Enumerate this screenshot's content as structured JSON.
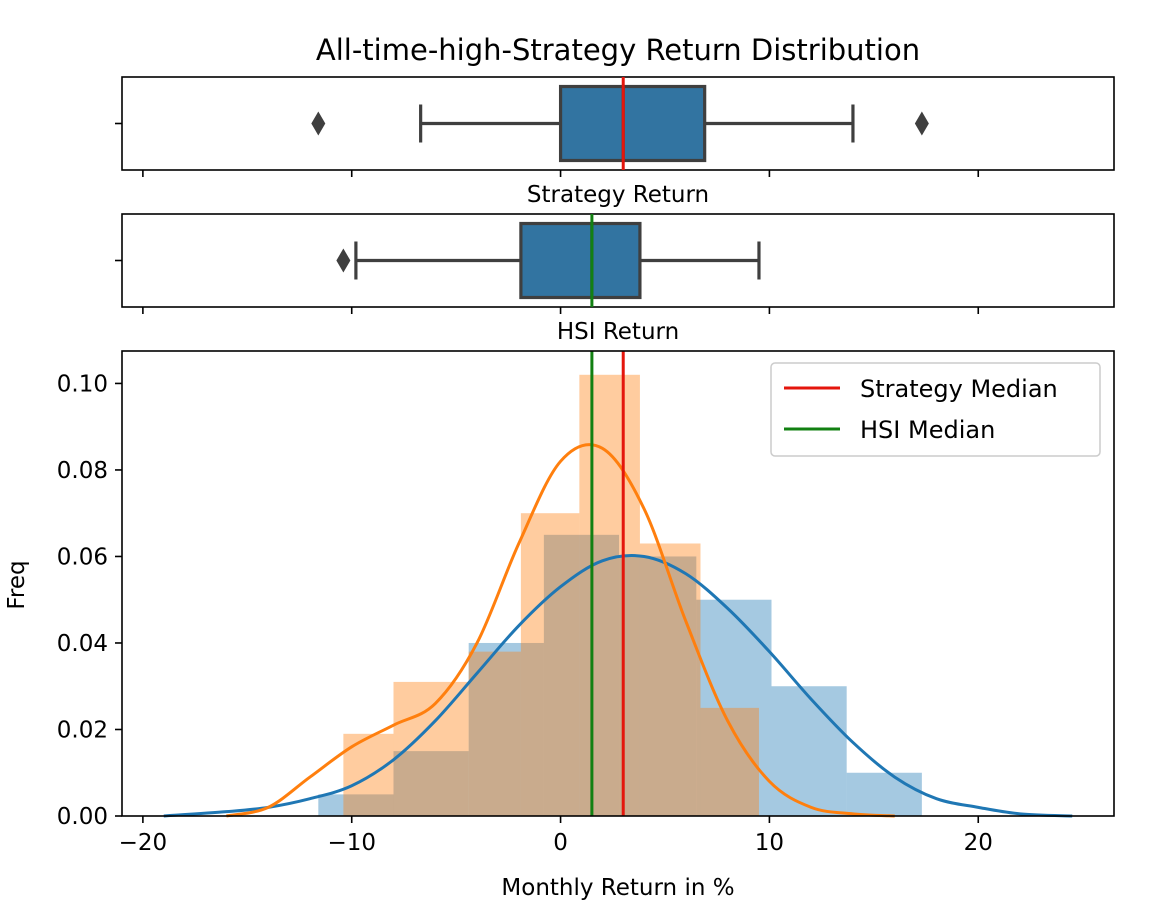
{
  "chart_data": {
    "type": "histogram",
    "title": "All-time-high-Strategy Return Distribution",
    "xlabel": "Monthly Return in %",
    "ylabel": "Freq",
    "xlim": [
      -21,
      26.5
    ],
    "ylim": [
      0,
      0.1075
    ],
    "xticks": [
      -20,
      -10,
      0,
      10,
      20
    ],
    "xtick_labels": [
      "−20",
      "−10",
      "0",
      "10",
      "20"
    ],
    "yticks": [
      0.0,
      0.02,
      0.04,
      0.06,
      0.08,
      0.1
    ],
    "ytick_labels": [
      "0.00",
      "0.02",
      "0.04",
      "0.06",
      "0.08",
      "0.10"
    ],
    "legend_position": "top-right",
    "colors": {
      "strategy": "#1f77b4",
      "hsi": "#ff7f0e",
      "strategy_median": "#e4160c",
      "hsi_median": "#128012",
      "box_fill": "#3274a1",
      "box_edge": "#3f3f3f"
    },
    "boxplots": [
      {
        "label": "Strategy Return",
        "median": 3.0,
        "q1": 0.0,
        "q3": 6.9,
        "whisker_low": -6.7,
        "whisker_high": 14.0,
        "outliers": [
          -11.6,
          17.3
        ],
        "median_color": "#e4160c"
      },
      {
        "label": "HSI Return",
        "median": 1.5,
        "q1": -1.9,
        "q3": 3.8,
        "whisker_low": -9.8,
        "whisker_high": 9.5,
        "outliers": [
          -10.4
        ],
        "median_color": "#128012"
      }
    ],
    "histograms": [
      {
        "name": "Strategy",
        "color": "#1f77b4",
        "opacity": 0.4,
        "bins": [
          {
            "x0": -11.6,
            "x1": -8.0,
            "y": 0.005
          },
          {
            "x0": -8.0,
            "x1": -4.4,
            "y": 0.015
          },
          {
            "x0": -4.4,
            "x1": -0.8,
            "y": 0.04
          },
          {
            "x0": -0.8,
            "x1": 2.8,
            "y": 0.065
          },
          {
            "x0": 2.8,
            "x1": 6.5,
            "y": 0.06
          },
          {
            "x0": 6.5,
            "x1": 10.1,
            "y": 0.05
          },
          {
            "x0": 10.1,
            "x1": 13.7,
            "y": 0.03
          },
          {
            "x0": 13.7,
            "x1": 17.3,
            "y": 0.01
          }
        ]
      },
      {
        "name": "HSI",
        "color": "#ff7f0e",
        "opacity": 0.4,
        "bins": [
          {
            "x0": -10.4,
            "x1": -8.0,
            "y": 0.019
          },
          {
            "x0": -8.0,
            "x1": -4.4,
            "y": 0.031
          },
          {
            "x0": -4.4,
            "x1": -1.9,
            "y": 0.038
          },
          {
            "x0": -1.9,
            "x1": 0.9,
            "y": 0.07
          },
          {
            "x0": 0.9,
            "x1": 3.8,
            "y": 0.102
          },
          {
            "x0": 3.8,
            "x1": 6.7,
            "y": 0.063
          },
          {
            "x0": 6.7,
            "x1": 9.5,
            "y": 0.025
          }
        ]
      }
    ],
    "kde": [
      {
        "name": "Strategy",
        "color": "#1f77b4",
        "x": [
          -19,
          -16,
          -14,
          -12,
          -10,
          -8,
          -6,
          -4,
          -2,
          0,
          2,
          4,
          6,
          8,
          10,
          12,
          14,
          16,
          18,
          20,
          22,
          24.5
        ],
        "y": [
          0.0,
          0.001,
          0.002,
          0.004,
          0.007,
          0.013,
          0.022,
          0.033,
          0.044,
          0.053,
          0.059,
          0.06,
          0.056,
          0.048,
          0.038,
          0.027,
          0.017,
          0.009,
          0.004,
          0.002,
          0.0005,
          0.0
        ]
      },
      {
        "name": "HSI",
        "color": "#ff7f0e",
        "x": [
          -16,
          -14,
          -12,
          -10,
          -8,
          -6,
          -4,
          -2,
          0,
          2,
          4,
          6,
          8,
          10,
          12,
          14,
          16
        ],
        "y": [
          0.0,
          0.002,
          0.009,
          0.016,
          0.021,
          0.026,
          0.04,
          0.063,
          0.082,
          0.085,
          0.071,
          0.045,
          0.022,
          0.008,
          0.002,
          0.0005,
          0.0
        ]
      }
    ],
    "medians": [
      {
        "name": "Strategy Median",
        "value": 3.0,
        "color": "#e4160c"
      },
      {
        "name": "HSI Median",
        "value": 1.5,
        "color": "#128012"
      }
    ]
  }
}
